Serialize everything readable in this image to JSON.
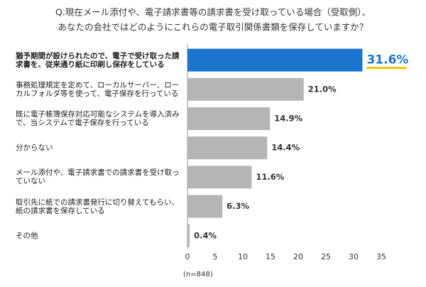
{
  "chart_data": {
    "type": "bar",
    "orientation": "horizontal",
    "title": [
      "Q.現在メール添付や、電子請求書等の請求書を受け取っている場合（受取側）、",
      "あなたの会社ではどのようにこれらの電子取引関係書類を保存していますか？"
    ],
    "categories": [
      "猶予期間が設けられたので、電子で受け取った請求書を、従来通り紙に印刷し保存をしている",
      "事務処理規定を定めて、ローカルサーバー、ローカルフォルダ等を使って、電子保存を行っている",
      "既に電子帳簿保存対応可能なシステムを導入済みで、当システムで電子保存を行っている",
      "分からない",
      "メール添付や、電子請求書での請求書を受け取っていない",
      "取引先に紙での請求書発行に切り替えてもらい、紙の請求書を保存している",
      "その他"
    ],
    "values": [
      31.6,
      21.0,
      14.9,
      14.4,
      11.6,
      6.3,
      0.4
    ],
    "value_labels": [
      "31.6%",
      "21.0%",
      "14.9%",
      "14.4%",
      "11.6%",
      "6.3%",
      "0.4%"
    ],
    "colors": [
      "#1b75cf",
      "#b5b5b5",
      "#b5b5b5",
      "#b5b5b5",
      "#b5b5b5",
      "#b5b5b5",
      "#b5b5b5"
    ],
    "xlim": [
      0,
      35
    ],
    "xticks": [
      0,
      5,
      10,
      15,
      20,
      25,
      30,
      35
    ],
    "note": "(n=848)"
  }
}
